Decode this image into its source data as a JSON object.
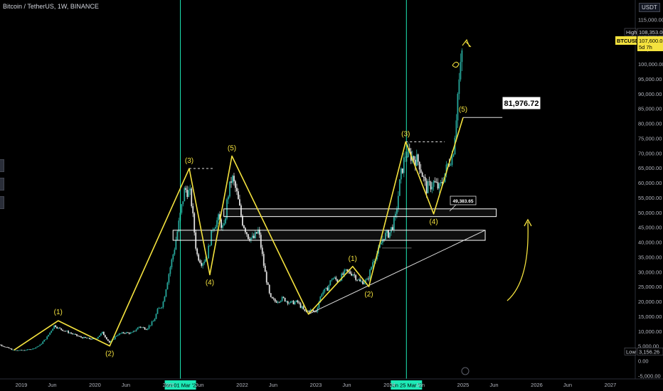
{
  "header": {
    "title": "Bitcoin / TetherUS, 1W, BINANCE",
    "unit": "USDT"
  },
  "price_scale": {
    "high_label": "High",
    "high_value": "108,353.00",
    "symbol": "BTCUSDT",
    "last_value": "107,600.01",
    "countdown": "5d 7h",
    "low_label": "Low",
    "low_value": "3,156.26"
  },
  "colors": {
    "background": "#000000",
    "up": "#26a69a",
    "down": "#e0e0e0",
    "wave": "#f4e23e",
    "vertical_marker": "#1de9b6",
    "zone": "#ffffff"
  },
  "chart_data": {
    "type": "line",
    "title": "Bitcoin / TetherUS, 1W, BINANCE",
    "xlabel": "",
    "ylabel": "",
    "ylim": [
      -5000,
      120000
    ],
    "y_ticks": [
      "115,000.00",
      "110,000.00",
      "105,000.00",
      "100,000.00",
      "95,000.00",
      "90,000.00",
      "85,000.00",
      "80,000.00",
      "75,000.00",
      "70,000.00",
      "65,000.00",
      "60,000.00",
      "55,000.00",
      "50,000.00",
      "45,000.00",
      "40,000.00",
      "35,000.00",
      "30,000.00",
      "25,000.00",
      "20,000.00",
      "15,000.00",
      "10,000.00",
      "5,000.00",
      "0.00",
      "-5,000.00"
    ],
    "x_ticks": [
      "2019",
      "Jun",
      "2020",
      "Jun",
      "2021",
      "Jun",
      "2022",
      "Jun",
      "2023",
      "Jun",
      "2024",
      "Jun",
      "2025",
      "Jun",
      "2026",
      "Jun",
      "2027"
    ],
    "x_tick_dates": [
      2019.0,
      2019.42,
      2020.0,
      2020.42,
      2021.0,
      2021.42,
      2022.0,
      2022.42,
      2023.0,
      2023.42,
      2024.0,
      2024.42,
      2025.0,
      2025.42,
      2026.0,
      2026.42,
      2027.0
    ],
    "grid": false,
    "series": [
      {
        "x": [
          2018.6,
          2018.75,
          2018.9,
          2019.05,
          2019.15,
          2019.25,
          2019.35,
          2019.45,
          2019.5,
          2019.6,
          2019.7,
          2019.8,
          2019.9,
          2020.0,
          2020.1,
          2020.2,
          2020.3,
          2020.4,
          2020.5,
          2020.6,
          2020.7,
          2020.8,
          2020.85,
          2020.92,
          2021.0,
          2021.08,
          2021.15,
          2021.22,
          2021.3,
          2021.38,
          2021.45,
          2021.52,
          2021.6,
          2021.68,
          2021.75,
          2021.8,
          2021.86,
          2021.92,
          2022.0,
          2022.08,
          2022.15,
          2022.22,
          2022.3,
          2022.38,
          2022.45,
          2022.55,
          2022.65,
          2022.75,
          2022.85,
          2022.92,
          2023.0,
          2023.08,
          2023.15,
          2023.22,
          2023.3,
          2023.4,
          2023.5,
          2023.6,
          2023.7,
          2023.78,
          2023.85,
          2023.92,
          2024.0,
          2024.08,
          2024.15,
          2024.22,
          2024.3,
          2024.4,
          2024.5,
          2024.6,
          2024.68,
          2024.75,
          2024.82,
          2024.86,
          2024.9,
          2024.93,
          2024.96,
          2025.0
        ],
        "y": [
          6500,
          5000,
          3500,
          3600,
          4000,
          5200,
          8000,
          12000,
          11000,
          10000,
          9000,
          8000,
          7500,
          7200,
          9500,
          6000,
          8800,
          9500,
          9300,
          11500,
          10800,
          13500,
          17000,
          19000,
          29000,
          38000,
          48000,
          58000,
          56000,
          36000,
          33000,
          35000,
          45000,
          48000,
          44000,
          55000,
          62000,
          57000,
          47000,
          42000,
          41000,
          44000,
          31000,
          21000,
          20000,
          21000,
          19500,
          19800,
          16500,
          17000,
          16500,
          23000,
          24000,
          28000,
          27000,
          30000,
          29500,
          26500,
          27000,
          34000,
          37000,
          42000,
          43000,
          48000,
          62000,
          70000,
          69000,
          67000,
          58000,
          60000,
          58000,
          63000,
          68000,
          69000,
          80000,
          91000,
          97000,
          107600
        ]
      }
    ],
    "annotations": {
      "vertical_markers": [
        "Mon 01 Mar '21",
        "Mon 25 Mar '24"
      ],
      "wave_labels": [
        "(1)",
        "(2)",
        "(3)",
        "(4)",
        "(5)",
        "(1)",
        "(2)",
        "(3)",
        "(4)",
        "(5)"
      ],
      "wave_points": [
        {
          "x": 2018.9,
          "y": 3600
        },
        {
          "x": 2019.5,
          "y": 13500
        },
        {
          "x": 2020.2,
          "y": 5000
        },
        {
          "x": 2021.28,
          "y": 64800
        },
        {
          "x": 2021.56,
          "y": 29000
        },
        {
          "x": 2021.86,
          "y": 69000
        },
        {
          "x": 2022.9,
          "y": 15700
        },
        {
          "x": 2023.5,
          "y": 31800
        },
        {
          "x": 2023.72,
          "y": 25000
        },
        {
          "x": 2024.22,
          "y": 73800
        },
        {
          "x": 2024.6,
          "y": 49500
        },
        {
          "x": 2025.0,
          "y": 82000
        }
      ],
      "target_value": "81,976.72",
      "support_value": "49,383.65",
      "zones": [
        {
          "y_low": 48600,
          "y_high": 51200
        },
        {
          "y_low": 40600,
          "y_high": 44000
        }
      ]
    }
  }
}
